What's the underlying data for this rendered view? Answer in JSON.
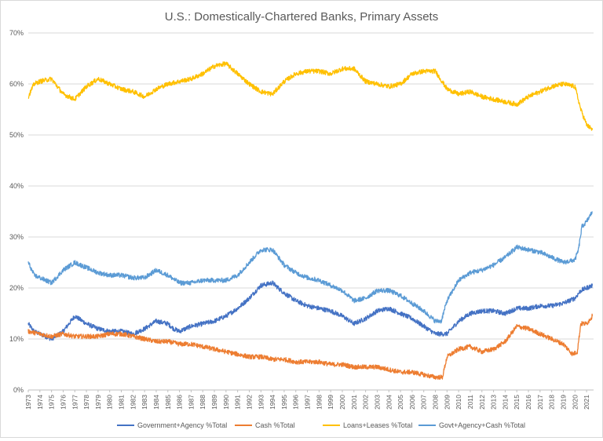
{
  "chart_data": {
    "type": "line",
    "title": "U.S.: Domestically-Chartered Banks, Primary Assets",
    "xlabel": "",
    "ylabel": "",
    "ylim": [
      0,
      70
    ],
    "xlim": [
      1973,
      2021.6
    ],
    "y_ticks": [
      "0%",
      "10%",
      "20%",
      "30%",
      "40%",
      "50%",
      "60%",
      "70%"
    ],
    "y_tick_values": [
      0,
      10,
      20,
      30,
      40,
      50,
      60,
      70
    ],
    "x_ticks": [
      "1973",
      "1974",
      "1975",
      "1976",
      "1977",
      "1978",
      "1979",
      "1980",
      "1981",
      "1982",
      "1983",
      "1984",
      "1985",
      "1986",
      "1987",
      "1988",
      "1989",
      "1990",
      "1991",
      "1992",
      "1993",
      "1994",
      "1995",
      "1996",
      "1997",
      "1998",
      "1999",
      "2000",
      "2001",
      "2002",
      "2003",
      "2004",
      "2005",
      "2006",
      "2007",
      "2008",
      "2009",
      "2010",
      "2011",
      "2012",
      "2013",
      "2014",
      "2015",
      "2016",
      "2017",
      "2018",
      "2019",
      "2020",
      "2021"
    ],
    "grid": "horizontal",
    "legend_position": "bottom",
    "series": [
      {
        "name": "Government+Agency %Total",
        "color": "#4472c4",
        "points": [
          [
            1973,
            13
          ],
          [
            1973.5,
            11.5
          ],
          [
            1974,
            11
          ],
          [
            1975,
            10
          ],
          [
            1976,
            11.5
          ],
          [
            1977,
            14.5
          ],
          [
            1978,
            13
          ],
          [
            1979,
            12
          ],
          [
            1980,
            11.5
          ],
          [
            1981,
            11.5
          ],
          [
            1982,
            11
          ],
          [
            1982.5,
            11.5
          ],
          [
            1983,
            12
          ],
          [
            1984,
            13.5
          ],
          [
            1985,
            13
          ],
          [
            1985.5,
            12
          ],
          [
            1986,
            11.5
          ],
          [
            1987,
            12.5
          ],
          [
            1988,
            13
          ],
          [
            1989,
            13.5
          ],
          [
            1990,
            14.5
          ],
          [
            1991,
            16
          ],
          [
            1992,
            18
          ],
          [
            1993,
            20.5
          ],
          [
            1994,
            21
          ],
          [
            1995,
            19
          ],
          [
            1996,
            17.5
          ],
          [
            1997,
            16.5
          ],
          [
            1998,
            16
          ],
          [
            1999,
            15.5
          ],
          [
            2000,
            14.5
          ],
          [
            2001,
            13
          ],
          [
            2002,
            14
          ],
          [
            2003,
            15.5
          ],
          [
            2004,
            16
          ],
          [
            2005,
            15
          ],
          [
            2006,
            14
          ],
          [
            2007,
            12.5
          ],
          [
            2008,
            11
          ],
          [
            2009,
            11
          ],
          [
            2010,
            13.5
          ],
          [
            2011,
            15
          ],
          [
            2012,
            15.5
          ],
          [
            2013,
            15.5
          ],
          [
            2014,
            15
          ],
          [
            2015,
            16
          ],
          [
            2016,
            16
          ],
          [
            2017,
            16.5
          ],
          [
            2018,
            16.5
          ],
          [
            2019,
            17
          ],
          [
            2020,
            18
          ],
          [
            2020.5,
            19.5
          ],
          [
            2021,
            20
          ],
          [
            2021.5,
            20.5
          ]
        ]
      },
      {
        "name": "Cash %Total",
        "color": "#ed7d31",
        "points": [
          [
            1973,
            11.5
          ],
          [
            1974,
            11
          ],
          [
            1975,
            10.5
          ],
          [
            1976,
            11
          ],
          [
            1977,
            10.5
          ],
          [
            1978,
            10.5
          ],
          [
            1979,
            10.5
          ],
          [
            1980,
            11
          ],
          [
            1981,
            11
          ],
          [
            1982,
            10.5
          ],
          [
            1983,
            10
          ],
          [
            1984,
            9.5
          ],
          [
            1985,
            9.5
          ],
          [
            1986,
            9
          ],
          [
            1987,
            9
          ],
          [
            1988,
            8.5
          ],
          [
            1989,
            8
          ],
          [
            1990,
            7.5
          ],
          [
            1991,
            7
          ],
          [
            1992,
            6.5
          ],
          [
            1993,
            6.5
          ],
          [
            1994,
            6
          ],
          [
            1995,
            6
          ],
          [
            1996,
            5.5
          ],
          [
            1997,
            5.5
          ],
          [
            1998,
            5.5
          ],
          [
            1999,
            5
          ],
          [
            2000,
            5
          ],
          [
            2001,
            4.5
          ],
          [
            2002,
            4.5
          ],
          [
            2003,
            4.5
          ],
          [
            2004,
            4
          ],
          [
            2005,
            3.5
          ],
          [
            2006,
            3.5
          ],
          [
            2007,
            3
          ],
          [
            2008,
            2.5
          ],
          [
            2008.6,
            2.5
          ],
          [
            2009,
            6.5
          ],
          [
            2010,
            8
          ],
          [
            2011,
            8.5
          ],
          [
            2012,
            7.5
          ],
          [
            2013,
            8
          ],
          [
            2014,
            9.5
          ],
          [
            2015,
            12.5
          ],
          [
            2016,
            12
          ],
          [
            2017,
            11
          ],
          [
            2018,
            10
          ],
          [
            2019,
            9
          ],
          [
            2019.8,
            7
          ],
          [
            2020.2,
            7.5
          ],
          [
            2020.5,
            13
          ],
          [
            2021,
            13
          ],
          [
            2021.5,
            14.5
          ]
        ]
      },
      {
        "name": "Loans+Leases %Total",
        "color": "#ffc000",
        "points": [
          [
            1973,
            57.5
          ],
          [
            1973.5,
            60
          ],
          [
            1974,
            60.5
          ],
          [
            1975,
            61
          ],
          [
            1976,
            58
          ],
          [
            1977,
            57
          ],
          [
            1978,
            59.5
          ],
          [
            1979,
            61
          ],
          [
            1980,
            60
          ],
          [
            1981,
            59
          ],
          [
            1982,
            58.5
          ],
          [
            1983,
            57.5
          ],
          [
            1984,
            59
          ],
          [
            1985,
            60
          ],
          [
            1986,
            60.5
          ],
          [
            1987,
            61
          ],
          [
            1988,
            62
          ],
          [
            1989,
            63.5
          ],
          [
            1990,
            64
          ],
          [
            1991,
            62
          ],
          [
            1992,
            60
          ],
          [
            1993,
            58.5
          ],
          [
            1994,
            58
          ],
          [
            1995,
            60.5
          ],
          [
            1996,
            62
          ],
          [
            1997,
            62.5
          ],
          [
            1998,
            62.5
          ],
          [
            1999,
            62
          ],
          [
            2000,
            63
          ],
          [
            2001,
            63
          ],
          [
            2002,
            60.5
          ],
          [
            2003,
            60
          ],
          [
            2004,
            59.5
          ],
          [
            2005,
            60
          ],
          [
            2006,
            62
          ],
          [
            2007,
            62.5
          ],
          [
            2008,
            62.5
          ],
          [
            2009,
            59
          ],
          [
            2010,
            58
          ],
          [
            2011,
            58.5
          ],
          [
            2012,
            57.5
          ],
          [
            2013,
            57
          ],
          [
            2014,
            56.5
          ],
          [
            2015,
            56
          ],
          [
            2016,
            57.5
          ],
          [
            2017,
            58.5
          ],
          [
            2018,
            59.5
          ],
          [
            2019,
            60
          ],
          [
            2020,
            59.5
          ],
          [
            2020.5,
            55
          ],
          [
            2021,
            52
          ],
          [
            2021.5,
            51
          ]
        ]
      },
      {
        "name": "Govt+Agency+Cash %Total",
        "color": "#5b9bd5",
        "points": [
          [
            1973,
            25
          ],
          [
            1973.5,
            22.5
          ],
          [
            1974,
            22
          ],
          [
            1975,
            21
          ],
          [
            1976,
            23.5
          ],
          [
            1977,
            25
          ],
          [
            1978,
            24
          ],
          [
            1979,
            23
          ],
          [
            1980,
            22.5
          ],
          [
            1981,
            22.5
          ],
          [
            1982,
            22
          ],
          [
            1983,
            22
          ],
          [
            1984,
            23.5
          ],
          [
            1985,
            22.5
          ],
          [
            1986,
            21
          ],
          [
            1987,
            21
          ],
          [
            1988,
            21.5
          ],
          [
            1989,
            21.5
          ],
          [
            1990,
            21.5
          ],
          [
            1991,
            22.5
          ],
          [
            1992,
            25
          ],
          [
            1993,
            27.5
          ],
          [
            1994,
            27.5
          ],
          [
            1995,
            24.5
          ],
          [
            1996,
            23
          ],
          [
            1997,
            22
          ],
          [
            1998,
            21.5
          ],
          [
            1999,
            20.5
          ],
          [
            2000,
            19.5
          ],
          [
            2001,
            17.5
          ],
          [
            2002,
            18
          ],
          [
            2003,
            19.5
          ],
          [
            2004,
            19.5
          ],
          [
            2005,
            18.5
          ],
          [
            2006,
            17
          ],
          [
            2007,
            15.5
          ],
          [
            2008,
            13.5
          ],
          [
            2008.5,
            13.5
          ],
          [
            2009,
            17.5
          ],
          [
            2010,
            21.5
          ],
          [
            2011,
            23
          ],
          [
            2012,
            23.5
          ],
          [
            2013,
            24.5
          ],
          [
            2014,
            26
          ],
          [
            2015,
            28
          ],
          [
            2016,
            27.5
          ],
          [
            2017,
            27
          ],
          [
            2018,
            26
          ],
          [
            2019,
            25
          ],
          [
            2020,
            25.5
          ],
          [
            2020.3,
            27.5
          ],
          [
            2020.6,
            32
          ],
          [
            2021,
            33
          ],
          [
            2021.5,
            35
          ]
        ]
      }
    ]
  }
}
